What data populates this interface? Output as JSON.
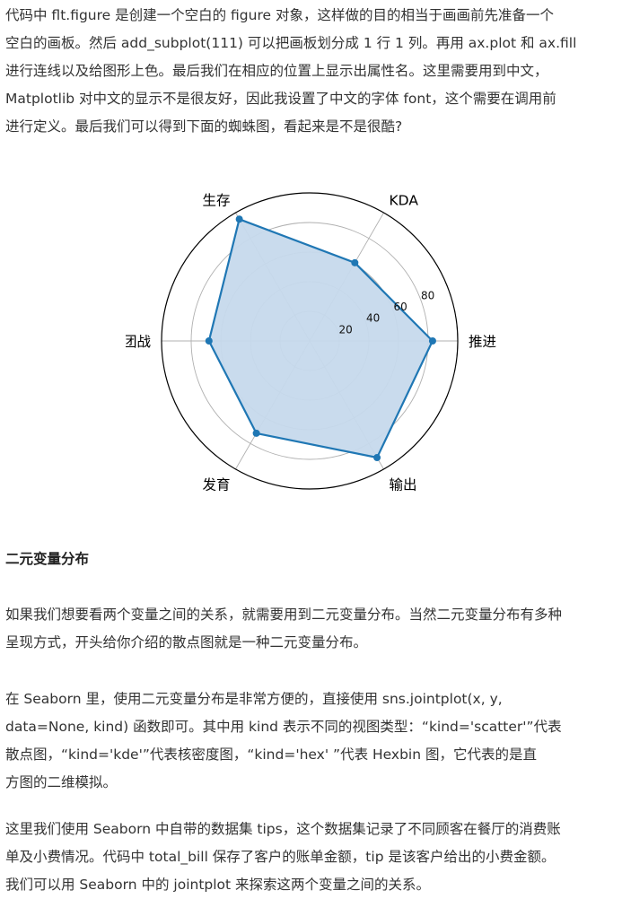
{
  "paragraph1": {
    "lines": [
      "代码中 flt.figure 是创建一个空白的 figure 对象，这样做的目的相当于画画前先准备一个",
      "空白的画板。然后 add_subplot(111) 可以把画板划分成 1 行 1 列。再用 ax.plot 和 ax.fill",
      "进行连线以及给图形上色。最后我们在相应的位置上显示出属性名。这里需要用到中文，",
      "Matplotlib 对中文的显示不是很友好，因此我设置了中文的字体 font，这个需要在调用前",
      "进行定义。最后我们可以得到下面的蜘蛛图，看起来是不是很酷?"
    ]
  },
  "chart_data": {
    "type": "radar",
    "categories": [
      "推进",
      "KDA",
      "生存",
      "团战",
      "发育",
      "输出"
    ],
    "values": [
      83,
      61,
      95,
      68,
      72,
      91
    ],
    "radial_ticks": [
      20,
      40,
      60,
      80
    ],
    "rmax": 100,
    "grid": true,
    "line_color": "#1f77b4",
    "fill_color": "#c6d9ec"
  },
  "heading": "二元变量分布",
  "paragraph2": {
    "lines": [
      "如果我们想要看两个变量之间的关系，就需要用到二元变量分布。当然二元变量分布有多种",
      "呈现方式，开头给你介绍的散点图就是一种二元变量分布。"
    ]
  },
  "paragraph3": {
    "lines": [
      "在 Seaborn 里，使用二元变量分布是非常方便的，直接使用 sns.jointplot(x, y,",
      "data=None, kind) 函数即可。其中用 kind 表示不同的视图类型：“kind='scatter'”代表",
      "散点图，“kind='kde'”代表核密度图，“kind='hex' ”代表 Hexbin 图，它代表的是直",
      "方图的二维模拟。"
    ]
  },
  "paragraph4": {
    "lines": [
      "这里我们使用 Seaborn 中自带的数据集 tips，这个数据集记录了不同顾客在餐厅的消费账",
      "单及小费情况。代码中 total_bill 保存了客户的账单金额，tip 是该客户给出的小费金额。",
      "我们可以用 Seaborn 中的 jointplot 来探索这两个变量之间的关系。"
    ]
  }
}
